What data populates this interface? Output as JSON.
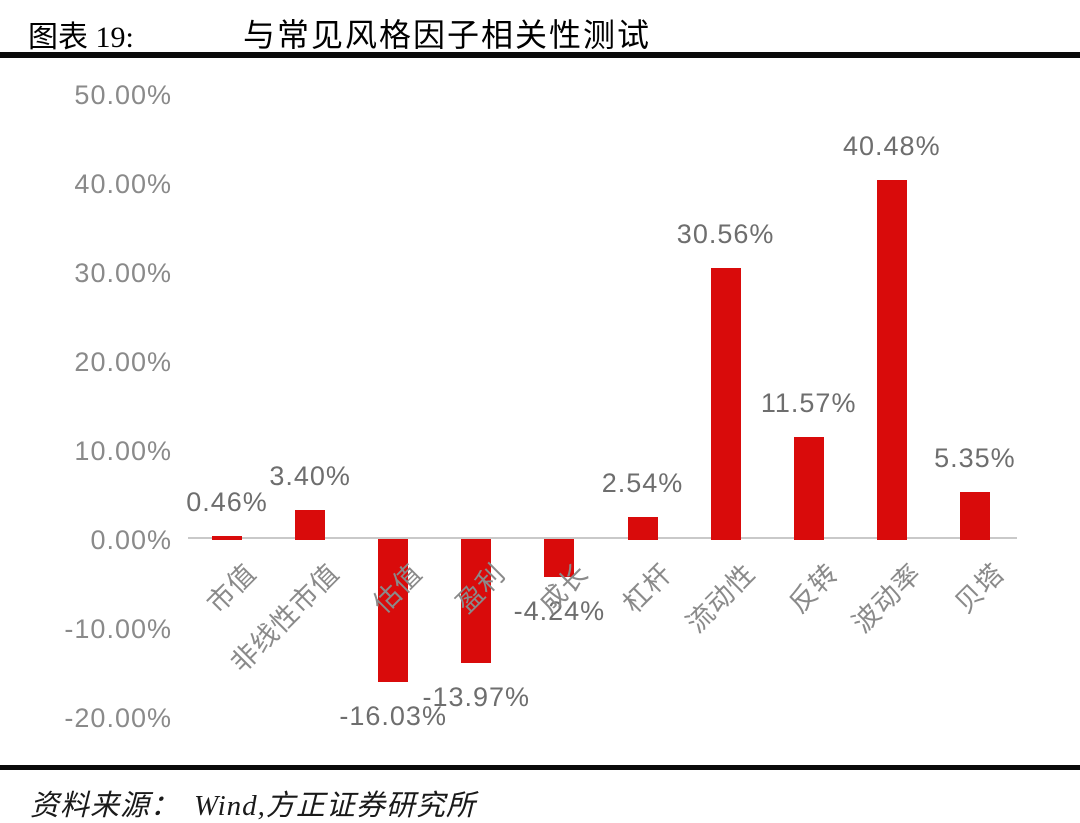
{
  "page": {
    "background": "#ffffff"
  },
  "header": {
    "figure_label": "图表 19:",
    "title": "与常见风格因子相关性测试"
  },
  "footer": {
    "source_label": "资料来源：",
    "source_text": "Wind,方正证券研究所"
  },
  "chart_data": {
    "type": "bar",
    "title": "与常见风格因子相关性测试",
    "categories": [
      "市值",
      "非线性市值",
      "估值",
      "盈利",
      "成长",
      "杠杆",
      "流动性",
      "反转",
      "波动率",
      "贝塔"
    ],
    "values": [
      0.46,
      3.4,
      -16.03,
      -13.97,
      -4.24,
      2.54,
      30.56,
      11.57,
      40.48,
      5.35
    ],
    "data_labels": [
      "0.46%",
      "3.40%",
      "-16.03%",
      "-13.97%",
      "-4.24%",
      "2.54%",
      "30.56%",
      "11.57%",
      "40.48%",
      "5.35%"
    ],
    "y_ticks": [
      "50.00%",
      "40.00%",
      "30.00%",
      "20.00%",
      "10.00%",
      "0.00%",
      "-10.00%",
      "-20.00%"
    ],
    "y_tick_values": [
      50,
      40,
      30,
      20,
      10,
      0,
      -10,
      -20
    ],
    "ylim": [
      -20,
      50
    ],
    "xlabel": "",
    "ylabel": "",
    "grid": false,
    "legend": "none",
    "bar_color": "#d90b0b",
    "axis_line_color": "#c9c9c9",
    "tick_label_color": "#8a8a8a",
    "data_label_color": "#6e6e6e",
    "category_label_color": "#8a8a8a"
  }
}
